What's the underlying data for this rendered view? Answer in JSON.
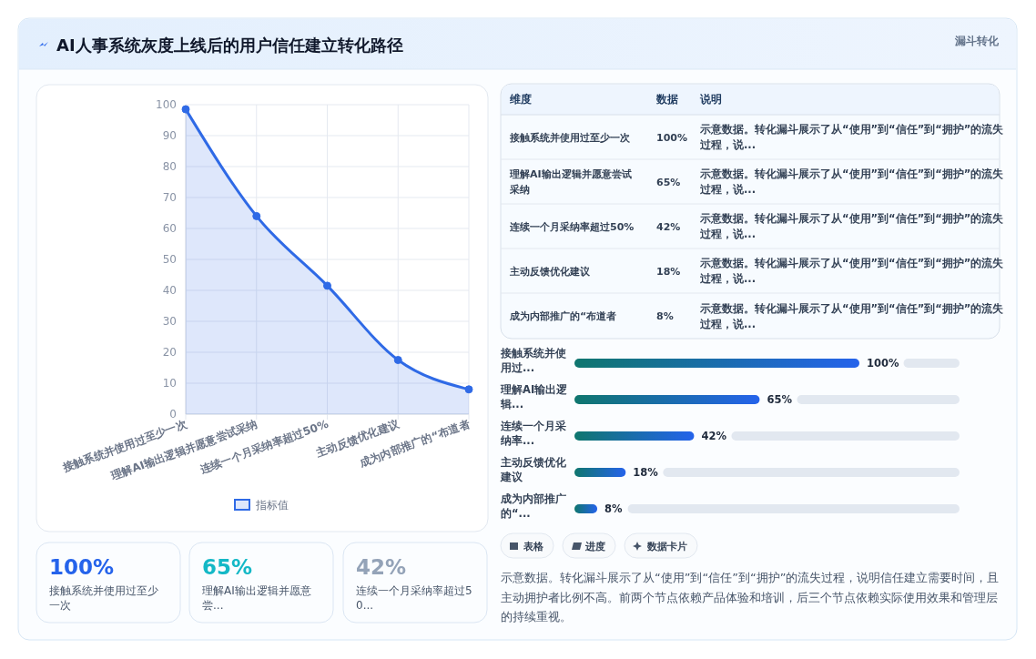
{
  "chart_data": [
    {
      "type": "other",
      "title": "AI人事系统灰度上线后的用户信任建立转化路径",
      "annotations": [
        "漏斗转化"
      ]
    },
    {
      "type": "area",
      "categories": [
        "接触系统并使用过至少一次",
        "理解AI输出逻辑并愿意尝试采纳",
        "连续一个月采纳率超过50%",
        "主动反馈优化建议",
        "成为内部推广的“布道者"
      ],
      "series": [
        {
          "name": "指标值",
          "color": "#2f6ae6",
          "values": [
            98.5,
            64,
            41.5,
            17.5,
            8
          ]
        }
      ],
      "ylim": [
        0,
        100
      ],
      "yticks": [
        0,
        10,
        20,
        30,
        40,
        50,
        60,
        70,
        80,
        90,
        100
      ],
      "grid": true,
      "legend": "bottom",
      "marker": "circle"
    },
    {
      "type": "other",
      "categories": [
        "接触系统并使用过至少一次",
        "理解AI输出逻辑并愿意尝试采纳",
        "连续一个月采纳率超过50%",
        "主动反馈优化建议",
        "成为内部推广的“布道者"
      ],
      "value_labels": [
        "100%",
        "65%",
        "42%",
        "18%",
        "8%"
      ],
      "annotations": [
        "维度",
        "数据",
        "说明",
        "示意数据。转化漏斗展示了从“使用”到“信任”到“拥护”的流失过程，说...",
        "示意数据。转化漏斗展示了从“使用”到“信任”到“拥护”的流失过程，说...",
        "示意数据。转化漏斗展示了从“使用”到“信任”到“拥护”的流失过程，说...",
        "示意数据。转化漏斗展示了从“使用”到“信任”到“拥护”的流失过程，说...",
        "示意数据。转化漏斗展示了从“使用”到“信任”到“拥护”的流失过程，说..."
      ]
    },
    {
      "type": "bar",
      "orientation": "horizontal",
      "categories": [
        "接触系统并使用过...",
        "理解AI输出逻辑...",
        "连续一个月采纳率...",
        "主动反馈优化建议",
        "成为内部推广的“..."
      ],
      "values": [
        100,
        65,
        42,
        18,
        8
      ],
      "value_labels": [
        "100%",
        "65%",
        "42%",
        "18%",
        "8%"
      ],
      "color": "#2563eb",
      "annotations": [
        "表格",
        "进度",
        "数据卡片"
      ]
    },
    {
      "type": "other",
      "categories": [
        "接触系统并使用过至少一次",
        "理解AI输出逻辑并愿意尝...",
        "连续一个月采纳率超过50..."
      ],
      "value_labels": [
        "100%",
        "65%",
        "42%"
      ],
      "colors": [
        "#2563eb",
        "#14b8c6",
        "#94a3b8"
      ],
      "annotations": [
        "示意数据。转化漏斗展示了从“使用”到“信任”到“拥护”的流失过程，说明信任建立需要时间，且主动拥护者比例不高。前两个节点依赖产品体验和培训，后三个节点依赖实际使用效果和管理层的持续重视。"
      ]
    }
  ]
}
